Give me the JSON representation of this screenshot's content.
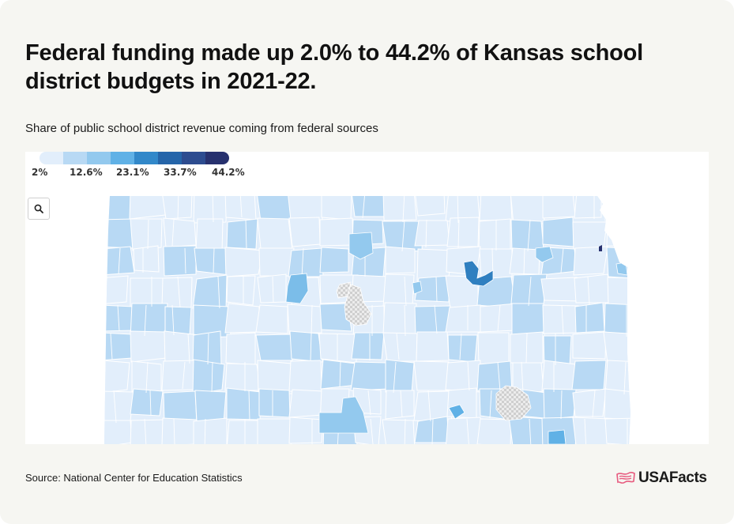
{
  "header": {
    "title": "Federal funding made up 2.0% to 44.2% of Kansas school district budgets in 2021-22.",
    "subtitle": "Share of public school district revenue coming from federal sources"
  },
  "legend": {
    "colors": [
      "#e2eefb",
      "#b8d9f4",
      "#93c9ee",
      "#60b1e6",
      "#3288c9",
      "#2565a9",
      "#2d4c8f",
      "#27316e"
    ],
    "tick_labels": [
      "2%",
      "12.6%",
      "23.1%",
      "33.7%",
      "44.2%"
    ],
    "range": [
      2.0,
      44.2
    ]
  },
  "map": {
    "region": "Kansas school districts",
    "no_data_pattern": "light gray checkered",
    "search_icon": "magnifier-icon"
  },
  "footer": {
    "source": "Source: National Center for Education Statistics",
    "logo_text": "USAFacts",
    "logo_icon": "usafacts-flag-icon",
    "logo_color": "#e75b7f"
  }
}
